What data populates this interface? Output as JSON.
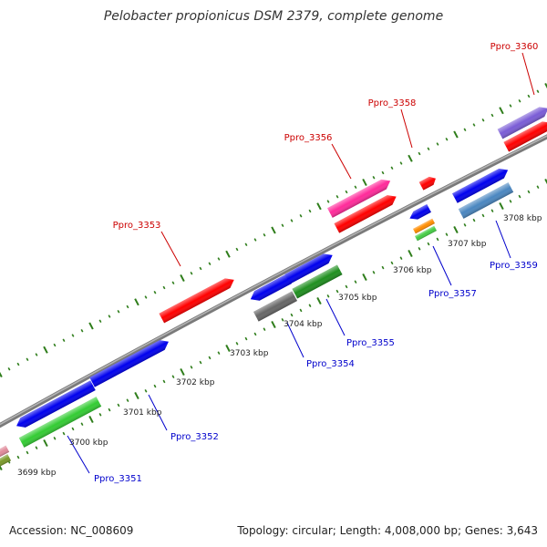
{
  "title": "Pelobacter propionicus DSM 2379, complete genome",
  "footer": {
    "accession": "Accession: NC_008609",
    "stats": "Topology: circular; Length: 4,008,000 bp; Genes: 3,643"
  },
  "colors": {
    "backbone": "#8c8c8c",
    "tick": "#2e7d1a",
    "label_top": "#cc0000",
    "label_bottom": "#0000cc"
  },
  "kbp_labels": [
    "3699 kbp",
    "3700 kbp",
    "3701 kbp",
    "3702 kbp",
    "3703 kbp",
    "3704 kbp",
    "3705 kbp",
    "3706 kbp",
    "3707 kbp",
    "3708 kbp"
  ],
  "genes_top": [
    {
      "name": "Ppro_3353",
      "color": "#ff0000"
    },
    {
      "name": "Ppro_3356",
      "color": "#ff0000"
    },
    {
      "name": "Ppro_3358",
      "color": "#ff0000"
    },
    {
      "name": "Ppro_3360",
      "color": "#ff0000"
    }
  ],
  "genes_bottom": [
    {
      "name": "Ppro_3351",
      "color": "#22cc22"
    },
    {
      "name": "Ppro_3352",
      "color": "#0000ee"
    },
    {
      "name": "Ppro_3354",
      "color": "#666666"
    },
    {
      "name": "Ppro_3355",
      "color": "#1f8f1f"
    },
    {
      "name": "Ppro_3357",
      "color": "#0000ee"
    },
    {
      "name": "Ppro_3359",
      "color": "#3a6fb0"
    }
  ]
}
